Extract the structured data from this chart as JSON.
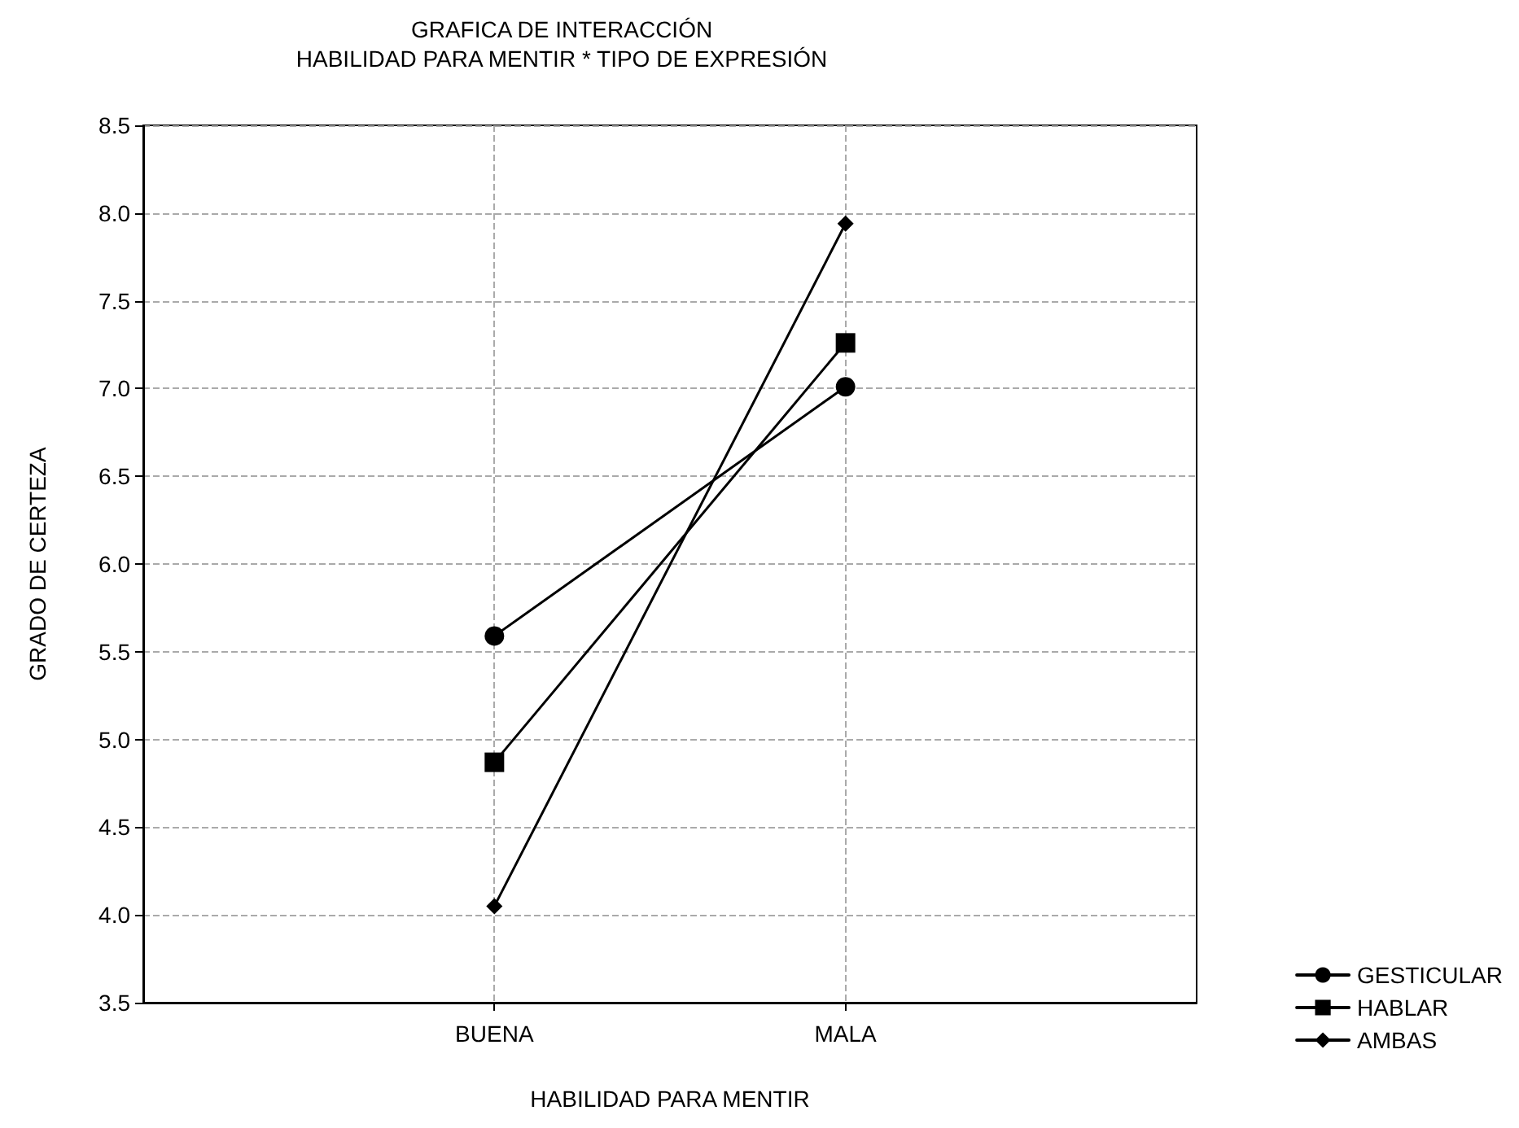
{
  "chart_data": {
    "type": "line",
    "title": "GRAFICA DE INTERACCIÓN",
    "subtitle": "HABILIDAD PARA MENTIR * TIPO DE EXPRESIÓN",
    "xlabel": "HABILIDAD PARA MENTIR",
    "ylabel": "GRADO DE CERTEZA",
    "categories": [
      "BUENA",
      "MALA"
    ],
    "series": [
      {
        "name": "GESTICULAR",
        "color": "#000000",
        "marker": "circle",
        "values": [
          5.59,
          7.01
        ]
      },
      {
        "name": "HABLAR",
        "color": "#000000",
        "marker": "square",
        "values": [
          4.87,
          7.26
        ]
      },
      {
        "name": "AMBAS",
        "color": "#000000",
        "marker": "diamond",
        "values": [
          4.05,
          7.94
        ]
      }
    ],
    "ylim": [
      3.5,
      8.5
    ],
    "yticks": [
      3.5,
      {
        "value": 4,
        "label": "4.0"
      },
      4.5,
      {
        "value": 5,
        "label": "5.0"
      },
      5.5,
      {
        "value": 6,
        "label": "6.0"
      },
      6.5,
      {
        "value": 7,
        "label": "7.0"
      },
      7.5,
      {
        "value": 8,
        "label": "8.0"
      },
      8.5
    ],
    "grid": true,
    "legend": "bottom right",
    "line_style": "solid"
  }
}
